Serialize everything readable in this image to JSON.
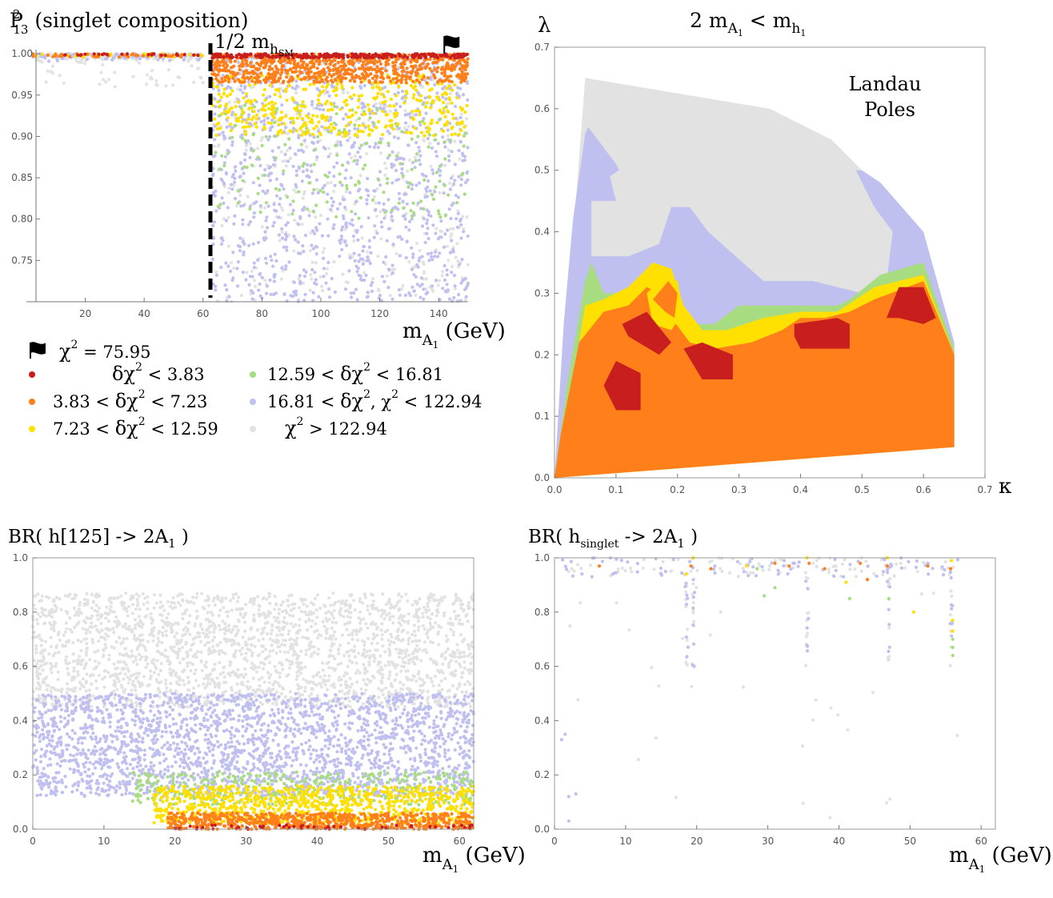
{
  "colors": {
    "red": "#c81e1e",
    "orange": "#ff7f1a",
    "yellow": "#ffe000",
    "green": "#a8dc80",
    "lavender": "#c0c0f0",
    "gray": "#e2e2e2"
  },
  "chart_data": [
    {
      "id": "tl",
      "type": "scatter",
      "title": "P²₁₃ (singlet composition)",
      "title_main": "P",
      "title_sup": "2",
      "title_sub": "13",
      "title_rest": " (singlet composition)",
      "xlabel": "m_A1 (GeV)",
      "xlabel_main": "m",
      "xlabel_sub": "A",
      "xlabel_subsub": "1",
      "xlabel_rest": " (GeV)",
      "xlim": [
        0,
        150
      ],
      "ylim": [
        0.7,
        1.005
      ],
      "xticks": [
        "20",
        "40",
        "60",
        "80",
        "100",
        "120",
        "140"
      ],
      "xtick_values": [
        20,
        40,
        60,
        80,
        100,
        120,
        140
      ],
      "yticks": [
        "0.75",
        "0.80",
        "0.85",
        "0.90",
        "0.95",
        "1.00"
      ],
      "ytick_values": [
        0.75,
        0.8,
        0.85,
        0.9,
        0.95,
        1.0
      ],
      "vline_x": 62.5,
      "vline_label_main": "1/2 m",
      "vline_label_sub": "h",
      "vline_label_subsub": "SM",
      "best_fit": {
        "x": 143,
        "y": 1.0
      }
    },
    {
      "id": "tr",
      "type": "contour",
      "title": "2 m_A1 < m_h1",
      "title_a": "2 m",
      "title_a_sub": "A",
      "title_a_subsub": "1",
      "title_b": " <  m",
      "title_b_sub": "h",
      "title_b_subsub": "1",
      "xlabel": "κ",
      "ylabel": "λ",
      "xlim": [
        0,
        0.7
      ],
      "ylim": [
        0,
        0.7
      ],
      "xticks": [
        "0.0",
        "0.1",
        "0.2",
        "0.3",
        "0.4",
        "0.5",
        "0.6",
        "0.7"
      ],
      "xtick_values": [
        0,
        0.1,
        0.2,
        0.3,
        0.4,
        0.5,
        0.6,
        0.7
      ],
      "yticks": [
        "0.0",
        "0.1",
        "0.2",
        "0.3",
        "0.4",
        "0.5",
        "0.6",
        "0.7"
      ],
      "ytick_values": [
        0,
        0.1,
        0.2,
        0.3,
        0.4,
        0.5,
        0.6,
        0.7
      ],
      "annotation_line1": "Landau",
      "annotation_line2": "Poles",
      "regions": [
        {
          "color": "gray",
          "points": [
            [
              0,
              0
            ],
            [
              0.05,
              0.65
            ],
            [
              0.35,
              0.6
            ],
            [
              0.45,
              0.55
            ],
            [
              0.5,
              0.5
            ],
            [
              0.55,
              0.45
            ],
            [
              0.6,
              0.38
            ],
            [
              0.65,
              0.22
            ],
            [
              0.65,
              0.05
            ],
            [
              0,
              0
            ]
          ]
        },
        {
          "color": "lavender",
          "points": [
            [
              0,
              0
            ],
            [
              0.015,
              0.25
            ],
            [
              0.03,
              0.42
            ],
            [
              0.05,
              0.56
            ],
            [
              0.055,
              0.57
            ],
            [
              0.1,
              0.51
            ],
            [
              0.105,
              0.5
            ],
            [
              0.09,
              0.49
            ],
            [
              0.1,
              0.45
            ],
            [
              0.06,
              0.45
            ],
            [
              0.06,
              0.36
            ],
            [
              0.12,
              0.36
            ],
            [
              0.17,
              0.38
            ],
            [
              0.19,
              0.44
            ],
            [
              0.22,
              0.44
            ],
            [
              0.25,
              0.4
            ],
            [
              0.34,
              0.32
            ],
            [
              0.42,
              0.32
            ],
            [
              0.5,
              0.3
            ],
            [
              0.54,
              0.32
            ],
            [
              0.55,
              0.4
            ],
            [
              0.52,
              0.44
            ],
            [
              0.49,
              0.5
            ],
            [
              0.5,
              0.5
            ],
            [
              0.53,
              0.48
            ],
            [
              0.6,
              0.4
            ],
            [
              0.65,
              0.22
            ],
            [
              0.65,
              0.05
            ],
            [
              0,
              0
            ]
          ]
        },
        {
          "color": "green",
          "points": [
            [
              0,
              0
            ],
            [
              0.02,
              0.15
            ],
            [
              0.05,
              0.32
            ],
            [
              0.06,
              0.35
            ],
            [
              0.08,
              0.3
            ],
            [
              0.12,
              0.3
            ],
            [
              0.15,
              0.34
            ],
            [
              0.18,
              0.34
            ],
            [
              0.19,
              0.3
            ],
            [
              0.22,
              0.25
            ],
            [
              0.26,
              0.25
            ],
            [
              0.3,
              0.28
            ],
            [
              0.38,
              0.28
            ],
            [
              0.46,
              0.28
            ],
            [
              0.48,
              0.29
            ],
            [
              0.53,
              0.33
            ],
            [
              0.6,
              0.35
            ],
            [
              0.65,
              0.21
            ],
            [
              0.65,
              0.05
            ],
            [
              0,
              0
            ]
          ]
        },
        {
          "color": "yellow",
          "points": [
            [
              0,
              0
            ],
            [
              0.02,
              0.1
            ],
            [
              0.05,
              0.28
            ],
            [
              0.08,
              0.29
            ],
            [
              0.12,
              0.31
            ],
            [
              0.16,
              0.35
            ],
            [
              0.19,
              0.34
            ],
            [
              0.21,
              0.28
            ],
            [
              0.24,
              0.24
            ],
            [
              0.28,
              0.24
            ],
            [
              0.34,
              0.26
            ],
            [
              0.4,
              0.27
            ],
            [
              0.46,
              0.27
            ],
            [
              0.52,
              0.31
            ],
            [
              0.6,
              0.33
            ],
            [
              0.65,
              0.2
            ],
            [
              0.65,
              0.05
            ],
            [
              0,
              0
            ]
          ]
        },
        {
          "color": "orange",
          "points": [
            [
              0,
              0
            ],
            [
              0.01,
              0.07
            ],
            [
              0.04,
              0.22
            ],
            [
              0.08,
              0.27
            ],
            [
              0.12,
              0.28
            ],
            [
              0.15,
              0.31
            ],
            [
              0.17,
              0.3
            ],
            [
              0.19,
              0.26
            ],
            [
              0.22,
              0.22
            ],
            [
              0.26,
              0.21
            ],
            [
              0.32,
              0.22
            ],
            [
              0.37,
              0.24
            ],
            [
              0.4,
              0.26
            ],
            [
              0.44,
              0.26
            ],
            [
              0.48,
              0.27
            ],
            [
              0.52,
              0.29
            ],
            [
              0.6,
              0.32
            ],
            [
              0.65,
              0.2
            ],
            [
              0.65,
              0.05
            ],
            [
              0,
              0
            ]
          ]
        },
        {
          "color": "yellow",
          "points": [
            [
              0.15,
              0.3
            ],
            [
              0.18,
              0.33
            ],
            [
              0.2,
              0.32
            ],
            [
              0.21,
              0.27
            ],
            [
              0.19,
              0.24
            ],
            [
              0.16,
              0.25
            ]
          ]
        },
        {
          "color": "orange",
          "points": [
            [
              0.16,
              0.29
            ],
            [
              0.185,
              0.32
            ],
            [
              0.2,
              0.3
            ],
            [
              0.195,
              0.26
            ],
            [
              0.18,
              0.27
            ]
          ]
        },
        {
          "color": "red",
          "points": [
            [
              0.08,
              0.15
            ],
            [
              0.1,
              0.19
            ],
            [
              0.14,
              0.17
            ],
            [
              0.14,
              0.11
            ],
            [
              0.1,
              0.11
            ]
          ]
        },
        {
          "color": "red",
          "points": [
            [
              0.11,
              0.25
            ],
            [
              0.15,
              0.27
            ],
            [
              0.19,
              0.22
            ],
            [
              0.17,
              0.2
            ],
            [
              0.12,
              0.23
            ]
          ]
        },
        {
          "color": "red",
          "points": [
            [
              0.21,
              0.21
            ],
            [
              0.24,
              0.22
            ],
            [
              0.29,
              0.2
            ],
            [
              0.29,
              0.16
            ],
            [
              0.24,
              0.16
            ]
          ]
        },
        {
          "color": "red",
          "points": [
            [
              0.39,
              0.25
            ],
            [
              0.46,
              0.26
            ],
            [
              0.48,
              0.25
            ],
            [
              0.48,
              0.21
            ],
            [
              0.4,
              0.21
            ],
            [
              0.39,
              0.23
            ]
          ]
        },
        {
          "color": "red",
          "points": [
            [
              0.54,
              0.26
            ],
            [
              0.56,
              0.31
            ],
            [
              0.6,
              0.31
            ],
            [
              0.62,
              0.26
            ],
            [
              0.6,
              0.25
            ],
            [
              0.56,
              0.26
            ]
          ]
        }
      ]
    },
    {
      "id": "bl",
      "type": "scatter",
      "title": "BR( h[125] -> 2A1 )",
      "title_main": "BR( h[125] -> 2A",
      "title_sub": "1",
      "title_rest": " )",
      "xlabel": "m_A1 (GeV)",
      "xlabel_main": "m",
      "xlabel_sub": "A",
      "xlabel_subsub": "1",
      "xlabel_rest": " (GeV)",
      "xlim": [
        0,
        62
      ],
      "ylim": [
        0,
        1.0
      ],
      "xticks": [
        "0",
        "10",
        "20",
        "30",
        "40",
        "50",
        "60"
      ],
      "xtick_values": [
        0,
        10,
        20,
        30,
        40,
        50,
        60
      ],
      "yticks": [
        "0.0",
        "0.2",
        "0.4",
        "0.6",
        "0.8",
        "1.0"
      ],
      "ytick_values": [
        0,
        0.2,
        0.4,
        0.6,
        0.8,
        1.0
      ]
    },
    {
      "id": "br",
      "type": "scatter",
      "title": "BR( h_singlet -> 2A1 )",
      "title_main": "BR( h",
      "title_sub": "singlet",
      "title_mid": " -> 2A",
      "title_sub2": "1",
      "title_rest": " )",
      "xlabel": "m_A1 (GeV)",
      "xlabel_main": "m",
      "xlabel_sub": "A",
      "xlabel_subsub": "1",
      "xlabel_rest": " (GeV)",
      "xlim": [
        0,
        62
      ],
      "ylim": [
        0,
        1.0
      ],
      "xticks": [
        "0",
        "10",
        "20",
        "30",
        "40",
        "50",
        "60"
      ],
      "xtick_values": [
        0,
        10,
        20,
        30,
        40,
        50,
        60
      ],
      "yticks": [
        "0.0",
        "0.2",
        "0.4",
        "0.6",
        "0.8",
        "1.0"
      ],
      "ytick_values": [
        0,
        0.2,
        0.4,
        0.6,
        0.8,
        1.0
      ]
    }
  ],
  "legend": {
    "flag_label": "χ",
    "flag_sup": "2",
    "flag_value": " = 75.95",
    "items": [
      {
        "color": "red",
        "text": "δχ² < 3.83",
        "a": "",
        "b": "δχ",
        "sup": "2",
        "c": " < 3.83"
      },
      {
        "color": "orange",
        "text": "3.83 < δχ² < 7.23",
        "a": "3.83 <  ",
        "b": "δχ",
        "sup": "2",
        "c": " < 7.23"
      },
      {
        "color": "yellow",
        "text": "7.23 < δχ² < 12.59",
        "a": "7.23 <  ",
        "b": "δχ",
        "sup": "2",
        "c": " < 12.59"
      },
      {
        "color": "green",
        "text": "12.59 < δχ² < 16.81",
        "a": "12.59 <  ",
        "b": "δχ",
        "sup": "2",
        "c": " < 16.81"
      },
      {
        "color": "lavender",
        "text": "16.81 < δχ², χ² < 122.94",
        "a": "16.81 <  ",
        "b": "δχ",
        "sup": "2",
        "c": ",   χ",
        "sup2": "2",
        "d": " < 122.94"
      },
      {
        "color": "gray",
        "text": "χ² > 122.94",
        "a": "",
        "b": "χ",
        "sup": "2",
        "c": " > 122.94"
      }
    ]
  }
}
